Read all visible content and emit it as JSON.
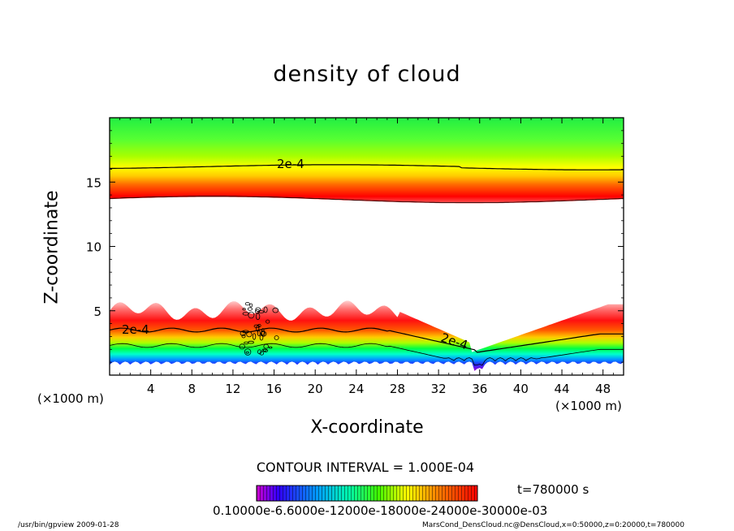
{
  "chart_data": {
    "type": "heatmap",
    "title": "density of cloud",
    "xlabel": "X-coordinate",
    "ylabel": "Z-coordinate",
    "x_unit_left": "(×1000 m)",
    "x_unit_right": "(×1000 m)",
    "xlim": [
      0,
      50
    ],
    "ylim": [
      0,
      20
    ],
    "x_ticks": [
      4,
      8,
      12,
      16,
      20,
      24,
      28,
      32,
      36,
      40,
      44,
      48
    ],
    "y_ticks": [
      5,
      10,
      15
    ],
    "contour_labels": [
      "2e-4",
      "2e-4",
      "2e-4"
    ],
    "colorscale": [
      "#ff00ff",
      "#0000ff",
      "#00e5ff",
      "#00ff00",
      "#ffff00",
      "#ff8c00",
      "#ff0000",
      "#ffffff"
    ],
    "upper_layer": {
      "bottom_km": 13.6,
      "top_km": 20,
      "contour_2e4_km": 16.2
    },
    "lower_layer": {
      "bottom_km": 0.8,
      "top_km": 5.8,
      "contour_2e4_km": 3.6
    },
    "contour_interval": "CONTOUR INTERVAL = 1.000E-04",
    "time": "t=780000 s",
    "colorbar_labels": "0.10000e-6.6000e-12000e-18000e-24000e-30000e-03"
  },
  "footer": {
    "left": "/usr/bin/gpview   2009-01-28",
    "right": "MarsCond_DensCloud.nc@DensCloud,x=0:50000,z=0:20000,t=780000"
  }
}
